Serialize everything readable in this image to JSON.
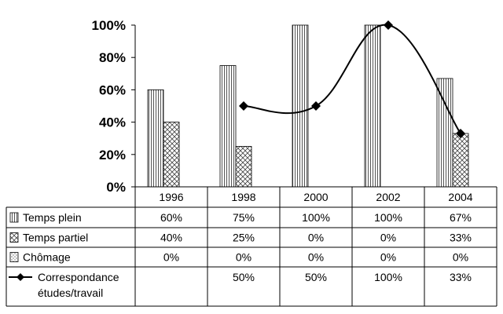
{
  "chart_data": {
    "type": "bar",
    "categories": [
      "1996",
      "1998",
      "2000",
      "2002",
      "2004"
    ],
    "ylim": [
      0,
      100
    ],
    "y_ticks": [
      "0%",
      "20%",
      "40%",
      "60%",
      "80%",
      "100%"
    ],
    "grid": false,
    "legend": "data-table",
    "series": [
      {
        "name": "Temps plein",
        "kind": "bar",
        "pattern": "vertical-lines",
        "values": [
          60,
          75,
          100,
          100,
          67
        ],
        "labels": [
          "60%",
          "75%",
          "100%",
          "100%",
          "67%"
        ]
      },
      {
        "name": "Temps partiel",
        "kind": "bar",
        "pattern": "crosshatch",
        "values": [
          40,
          25,
          0,
          0,
          33
        ],
        "labels": [
          "40%",
          "25%",
          "0%",
          "0%",
          "33%"
        ]
      },
      {
        "name": "Chômage",
        "kind": "bar",
        "pattern": "dots",
        "values": [
          0,
          0,
          0,
          0,
          0
        ],
        "labels": [
          "0%",
          "0%",
          "0%",
          "0%",
          "0%"
        ]
      },
      {
        "name": "Correspondance études/travail",
        "kind": "line",
        "marker": "diamond",
        "values": [
          null,
          50,
          50,
          100,
          33
        ],
        "labels": [
          "",
          "50%",
          "50%",
          "100%",
          "33%"
        ]
      }
    ]
  }
}
